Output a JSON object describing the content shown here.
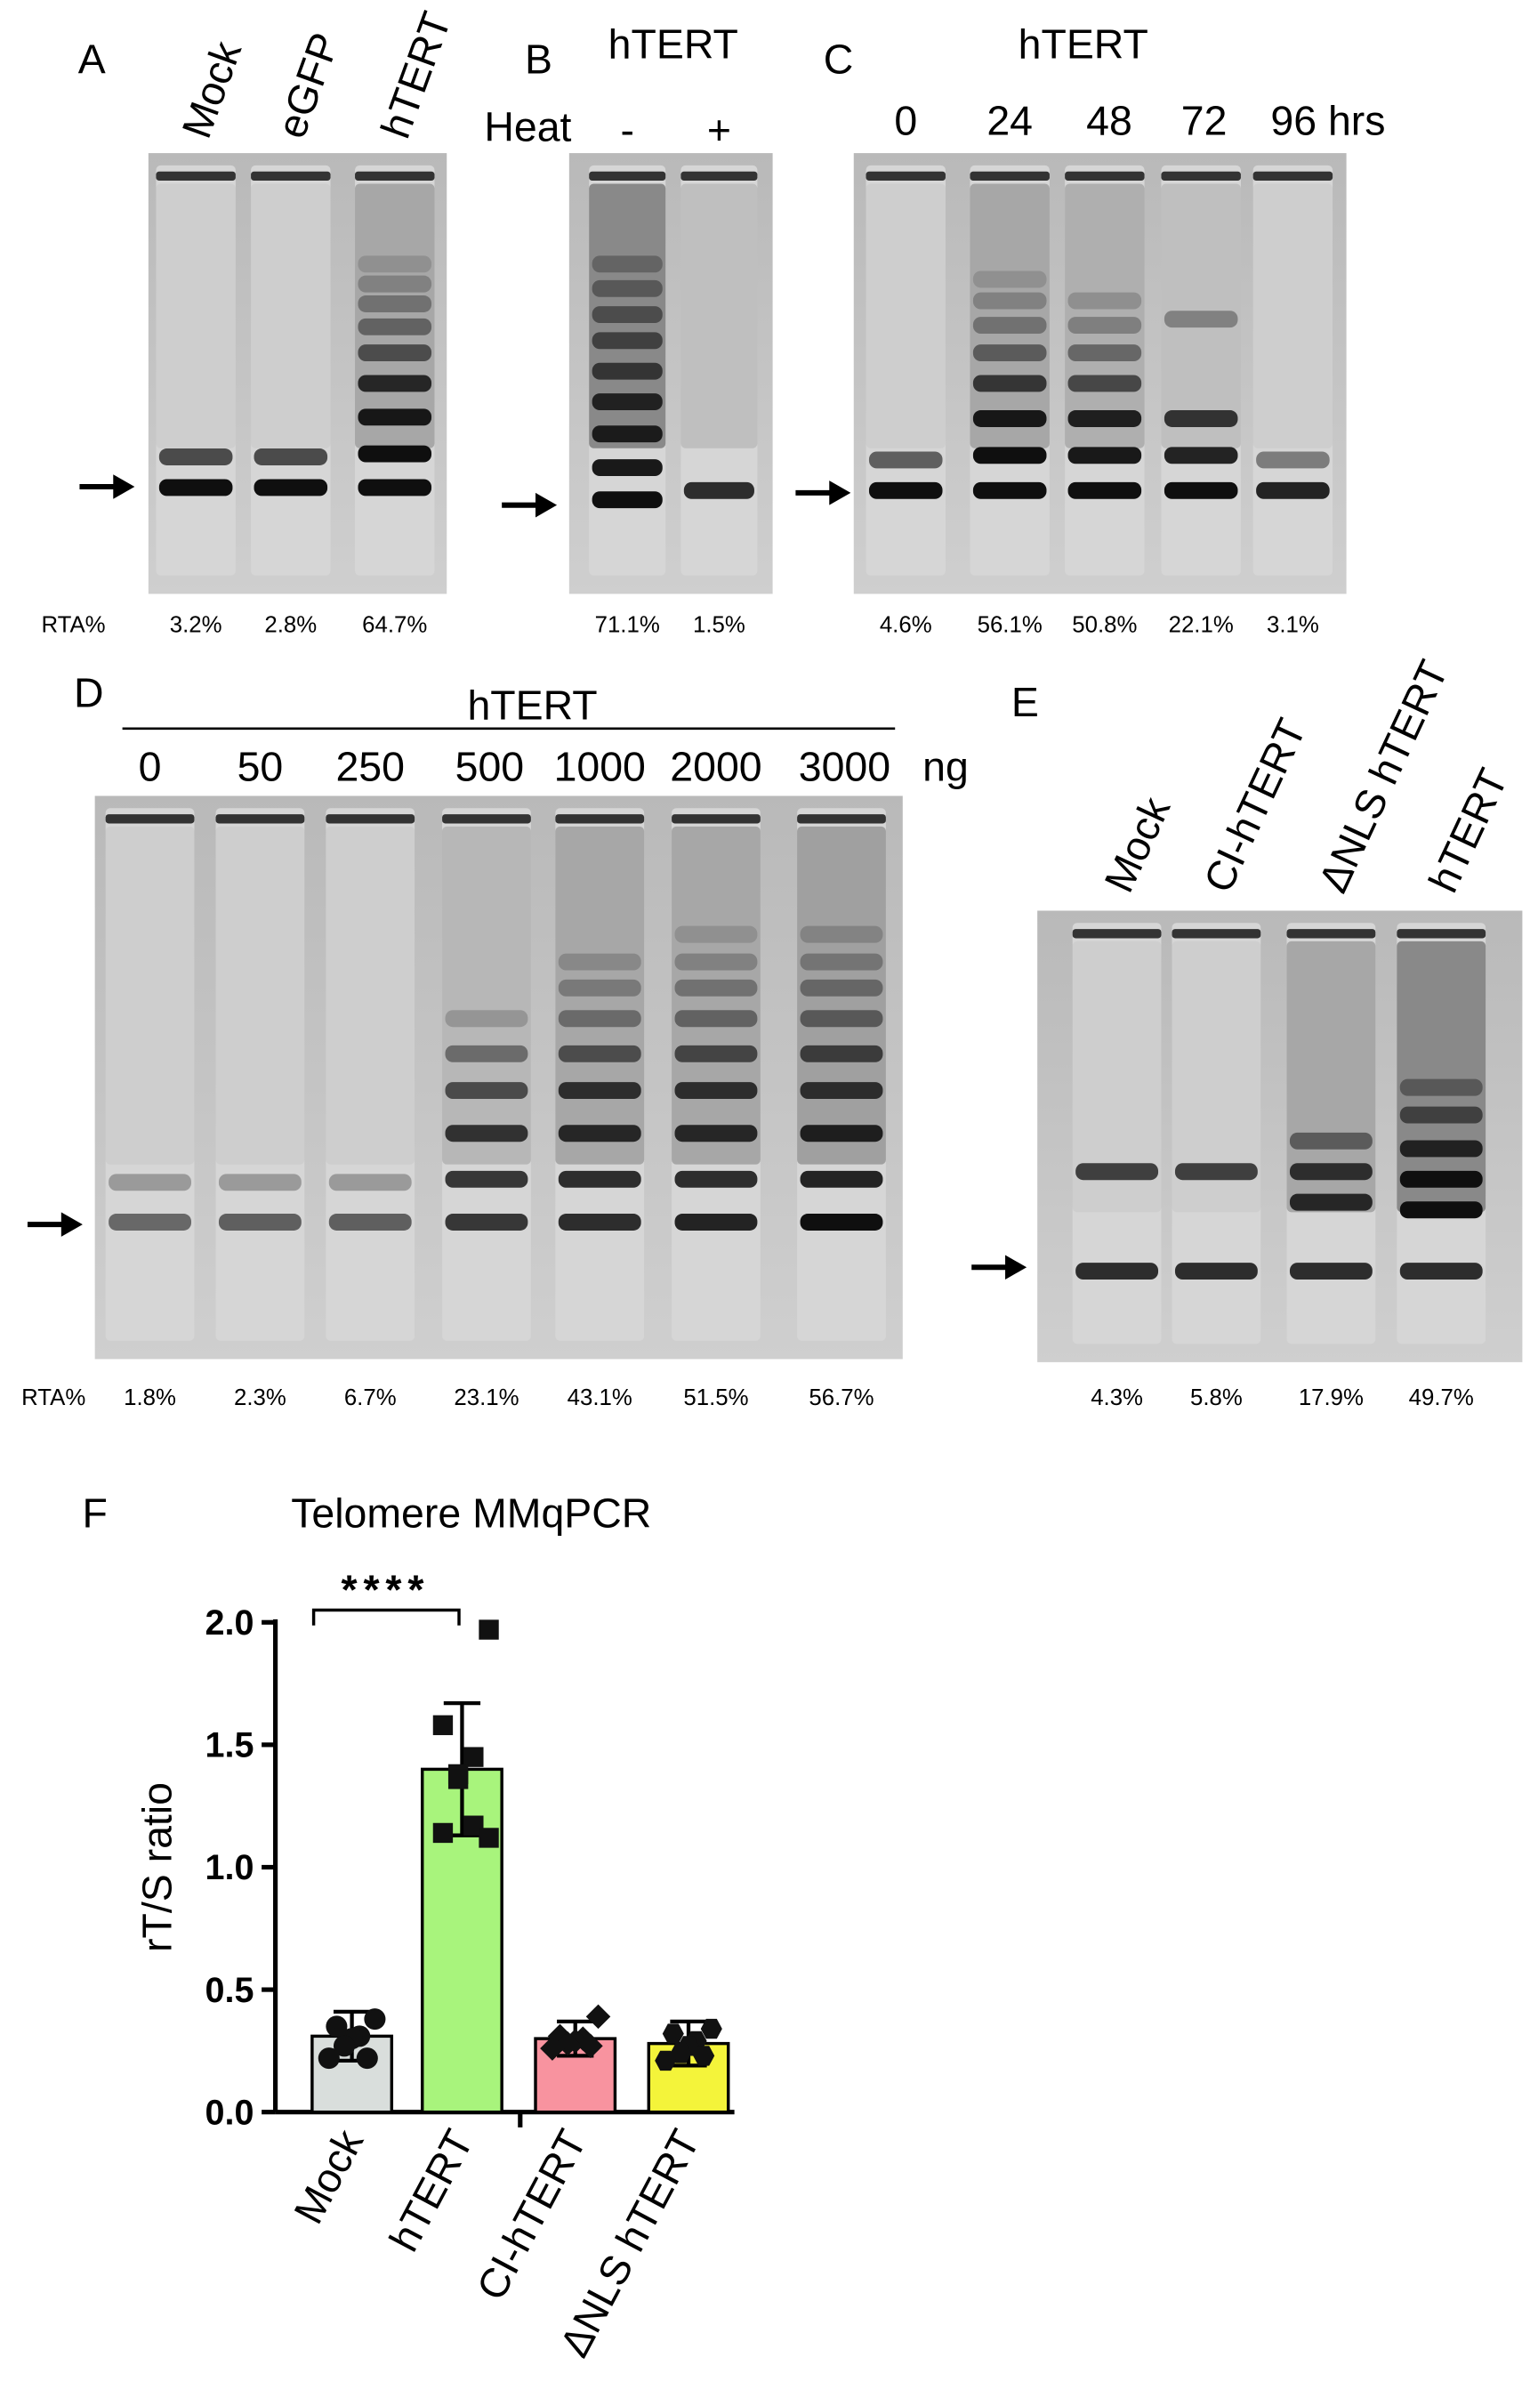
{
  "panels": [
    {
      "label": "A",
      "lanes": [
        "Mock",
        "eGFP",
        "hTERT"
      ],
      "rta_label": "RTA%",
      "rta": [
        "3.2%",
        "2.8%",
        "64.7%"
      ]
    },
    {
      "label": "B",
      "title": "hTERT",
      "condition": "Heat",
      "lanes": [
        "-",
        "+"
      ],
      "rta": [
        "71.1%",
        "1.5%"
      ]
    },
    {
      "label": "C",
      "title": "hTERT",
      "lanes": [
        "0",
        "24",
        "48",
        "72",
        "96 hrs"
      ],
      "rta": [
        "4.6%",
        "56.1%",
        "50.8%",
        "22.1%",
        "3.1%"
      ]
    },
    {
      "label": "D",
      "title": "hTERT",
      "lanes": [
        "0",
        "50",
        "250",
        "500",
        "1000",
        "2000",
        "3000"
      ],
      "unit": "ng",
      "rta_label": "RTA%",
      "rta": [
        "1.8%",
        "2.3%",
        "6.7%",
        "23.1%",
        "43.1%",
        "51.5%",
        "56.7%"
      ]
    },
    {
      "label": "E",
      "lanes": [
        "Mock",
        "CI-hTERT",
        "ΔNLS hTERT",
        "hTERT"
      ],
      "rta": [
        "4.3%",
        "5.8%",
        "17.9%",
        "49.7%"
      ]
    }
  ],
  "chart_data": {
    "type": "bar",
    "panel_label": "F",
    "title": "Telomere MMqPCR",
    "y_label": "rT/S ratio",
    "categories": [
      "Mock",
      "hTERT",
      "CI-hTERT",
      "ΔNLS hTERT"
    ],
    "values": [
      0.31,
      1.4,
      0.3,
      0.28
    ],
    "errors": [
      0.1,
      0.27,
      0.07,
      0.09
    ],
    "colors": [
      "#d9dedc",
      "#a8f47c",
      "#f8939f",
      "#f4f43a"
    ],
    "points": [
      [
        0.38,
        0.35,
        0.31,
        0.3,
        0.27,
        0.22,
        0.22
      ],
      [
        1.97,
        1.58,
        1.45,
        1.38,
        1.36,
        1.17,
        1.14,
        1.12
      ],
      [
        0.39,
        0.31,
        0.3,
        0.29,
        0.28,
        0.27,
        0.26
      ],
      [
        0.34,
        0.32,
        0.29,
        0.27,
        0.24,
        0.23,
        0.21
      ]
    ],
    "ylim": [
      0,
      2
    ],
    "yticks": [
      {
        "value": 0,
        "label": "0.0"
      },
      0.5,
      {
        "value": 1,
        "label": "1.0"
      },
      1.5,
      {
        "value": 2,
        "label": "2.0"
      }
    ],
    "annotation": "****"
  }
}
